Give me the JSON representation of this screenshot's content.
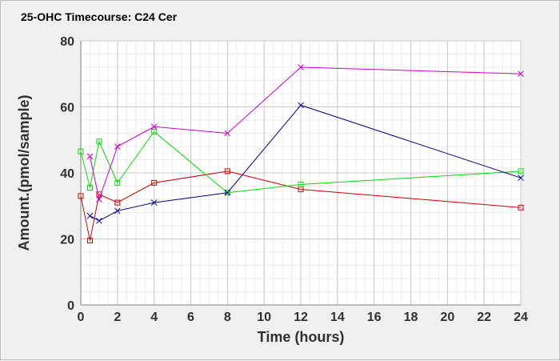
{
  "chart_data": {
    "type": "line",
    "title": "25-OHC Timecourse: C24 Cer",
    "xlabel": "Time (hours)",
    "ylabel": "Amount.(pmol/sample)",
    "xlim": [
      0,
      24
    ],
    "ylim": [
      0,
      80
    ],
    "xticks": [
      0,
      2,
      4,
      6,
      8,
      10,
      12,
      14,
      16,
      18,
      20,
      22,
      24
    ],
    "yticks": [
      0,
      20,
      40,
      60,
      80
    ],
    "x": [
      0,
      0.5,
      1,
      2,
      4,
      8,
      12,
      24
    ],
    "grid": true,
    "legend": "none",
    "series": [
      {
        "values": [
          33,
          19.5,
          33.5,
          31,
          37,
          40.5,
          35,
          29.5
        ],
        "color": "#cc0000",
        "marker": "square"
      },
      {
        "values": [
          46.5,
          35.5,
          49.5,
          37,
          52.5,
          34,
          36.5,
          40.5
        ],
        "color": "#00dd00",
        "marker": "square"
      },
      {
        "values": [
          null,
          27,
          25.5,
          28.5,
          31,
          34,
          60.5,
          38.5
        ],
        "color": "#00008b",
        "marker": "x"
      },
      {
        "values": [
          null,
          45,
          32,
          48,
          54,
          52,
          72,
          70
        ],
        "color": "#cc00cc",
        "marker": "x"
      }
    ]
  }
}
